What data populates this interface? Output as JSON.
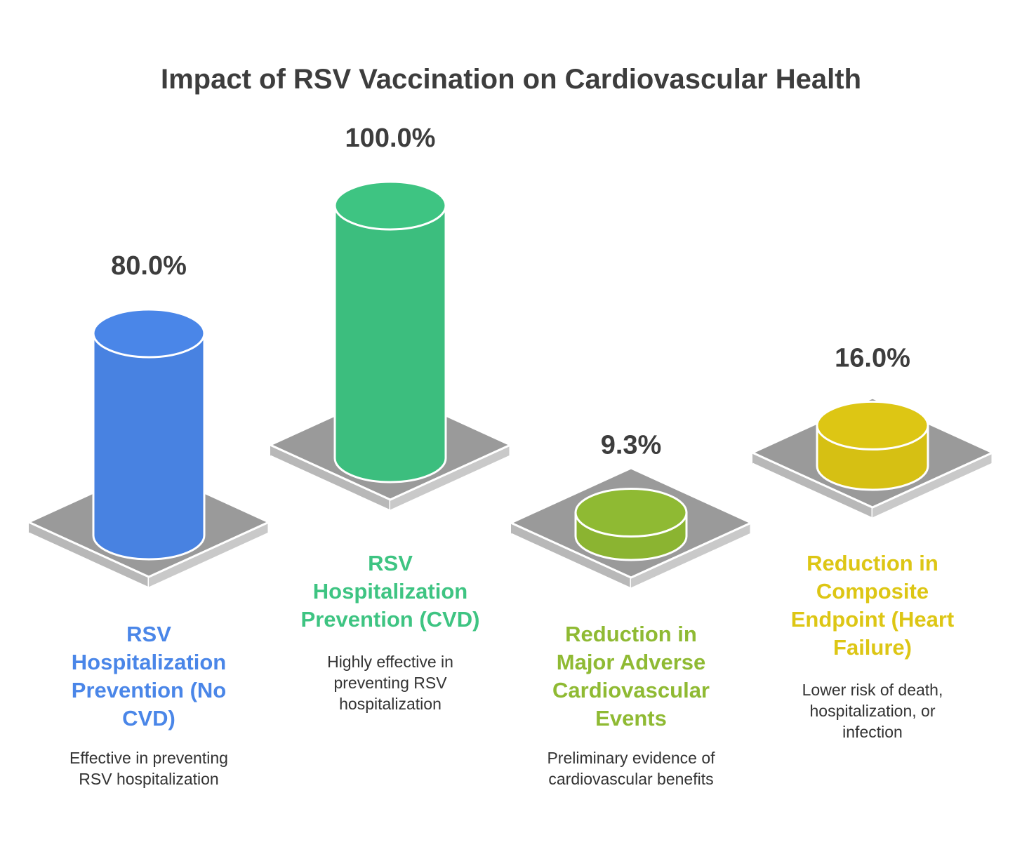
{
  "title": "Impact of RSV Vaccination on Cardiovascular Health",
  "chart_data": {
    "type": "bar",
    "style": "3d-cylinder-on-platform",
    "title": "Impact of RSV Vaccination on Cardiovascular Health",
    "xlabel": "",
    "ylabel": "",
    "unit": "%",
    "ylim": [
      0,
      100
    ],
    "grid": false,
    "legend": "none",
    "categories": [
      "RSV Hospitalization Prevention (No CVD)",
      "RSV Hospitalization Prevention (CVD)",
      "Reduction in Major Adverse Cardiovascular Events",
      "Reduction in Composite Endpoint (Heart Failure)"
    ],
    "values": [
      80.0,
      100.0,
      9.3,
      16.0
    ],
    "value_labels": [
      "80.0%",
      "100.0%",
      "9.3%",
      "16.0%"
    ],
    "descriptions": [
      "Effective in preventing RSV hospitalization",
      "Highly effective in preventing RSV hospitalization",
      "Preliminary evidence of cardiovascular benefits",
      "Lower risk of death, hospitalization, or infection"
    ],
    "colors": [
      "#4a86e8",
      "#3ec482",
      "#8fba33",
      "#ddc614"
    ],
    "platform_color": "#9a9a9a"
  }
}
